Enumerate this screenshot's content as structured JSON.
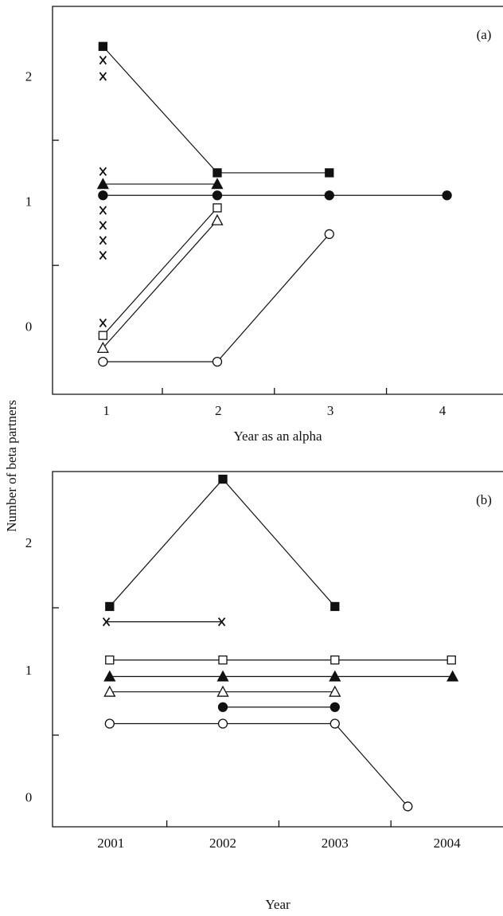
{
  "chart_data": [
    {
      "type": "line",
      "panel_label": "(a)",
      "xlabel": "Year as an alpha",
      "ylabel": "Number of beta partners",
      "xlim": [
        0.52,
        4.54
      ],
      "ylim": [
        -0.53,
        2.57
      ],
      "xticks": [
        1,
        2,
        3,
        4
      ],
      "xminor": [
        1.5,
        2.5,
        3.5
      ],
      "yticks": [
        0,
        1,
        2
      ],
      "yminor": [
        0.5,
        1.5
      ],
      "series": [
        {
          "marker": "square-filled",
          "line": true,
          "x": [
            0.97,
            1.99,
            2.99
          ],
          "values": [
            2.25,
            1.24,
            1.24
          ]
        },
        {
          "marker": "triangle-filled",
          "line": true,
          "x": [
            0.97,
            1.99
          ],
          "values": [
            1.15,
            1.15
          ]
        },
        {
          "marker": "circle-filled",
          "line": true,
          "x": [
            0.97,
            1.99,
            2.99,
            4.04
          ],
          "values": [
            1.06,
            1.06,
            1.06,
            1.06
          ]
        },
        {
          "marker": "square-open",
          "line": true,
          "x": [
            0.97,
            1.99
          ],
          "values": [
            -0.06,
            0.96
          ]
        },
        {
          "marker": "triangle-open",
          "line": true,
          "x": [
            0.97,
            1.99
          ],
          "values": [
            -0.16,
            0.86
          ]
        },
        {
          "marker": "circle-open",
          "line": true,
          "x": [
            0.97,
            1.99,
            2.99
          ],
          "values": [
            -0.27,
            -0.27,
            0.75
          ]
        },
        {
          "marker": "x",
          "line": false,
          "x": [
            0.97,
            0.97,
            0.97,
            0.97,
            0.97,
            0.97,
            0.97,
            0.97
          ],
          "values": [
            2.14,
            2.01,
            1.25,
            0.94,
            0.82,
            0.7,
            0.58,
            0.04
          ]
        }
      ]
    },
    {
      "type": "line",
      "panel_label": "(b)",
      "xlabel": "Year",
      "xlim": [
        2000.48,
        2004.5
      ],
      "ylim": [
        -0.22,
        2.57
      ],
      "xticks": [
        2001,
        2002,
        2003,
        2004
      ],
      "xminor": [
        2001.5,
        2002.5,
        2003.5
      ],
      "yticks": [
        0,
        1,
        2
      ],
      "yminor": [
        0.5,
        1.5
      ],
      "series": [
        {
          "marker": "square-filled",
          "line": true,
          "x": [
            2000.99,
            2002.0,
            2003.0
          ],
          "values": [
            1.51,
            2.51,
            1.51
          ]
        },
        {
          "marker": "x",
          "line": true,
          "x": [
            2000.96,
            2001.99
          ],
          "values": [
            1.39,
            1.39
          ]
        },
        {
          "marker": "square-open",
          "line": true,
          "x": [
            2000.99,
            2002.0,
            2003.0,
            2004.04
          ],
          "values": [
            1.09,
            1.09,
            1.09,
            1.09
          ]
        },
        {
          "marker": "triangle-filled",
          "line": true,
          "x": [
            2000.99,
            2002.0,
            2003.0,
            2004.05
          ],
          "values": [
            0.96,
            0.96,
            0.96,
            0.96
          ]
        },
        {
          "marker": "triangle-open",
          "line": true,
          "x": [
            2000.99,
            2002.0,
            2003.0
          ],
          "values": [
            0.84,
            0.84,
            0.84
          ]
        },
        {
          "marker": "circle-filled",
          "line": true,
          "x": [
            2002.0,
            2003.0
          ],
          "values": [
            0.72,
            0.72
          ]
        },
        {
          "marker": "circle-open",
          "line": true,
          "x": [
            2000.99,
            2002.0,
            2003.0,
            2003.65
          ],
          "values": [
            0.59,
            0.59,
            0.59,
            -0.06
          ]
        }
      ]
    }
  ]
}
